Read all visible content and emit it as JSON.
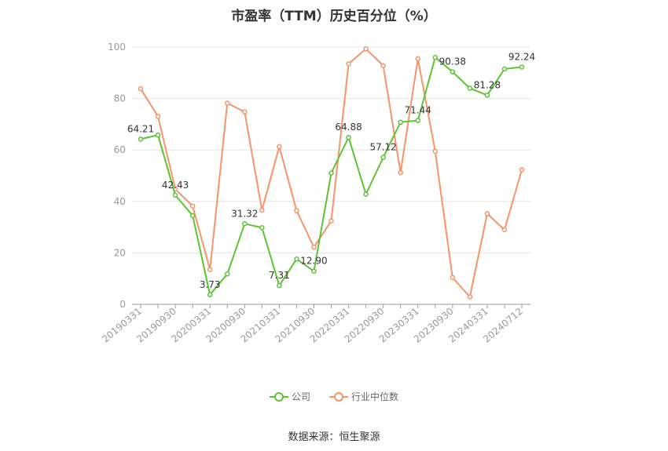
{
  "title": "市盈率（TTM）历史百分位（%）",
  "source": "数据来源：恒生聚源",
  "chart_data": {
    "type": "line",
    "title": "市盈率（TTM）历史百分位（%）",
    "ylim": [
      0,
      100
    ],
    "yticks": [
      0,
      20,
      40,
      60,
      80,
      100
    ],
    "grid": true,
    "legend_position": "bottom",
    "x": [
      "20190331",
      "20190630",
      "20190930",
      "20191231",
      "20200331",
      "20200630",
      "20200930",
      "20201231",
      "20210331",
      "20210630",
      "20210930",
      "20211231",
      "20220331",
      "20220630",
      "20220930",
      "20221231",
      "20230331",
      "20230630",
      "20230930",
      "20231231",
      "20240331",
      "20240630",
      "20240712"
    ],
    "xtick_labels": [
      "20190331",
      "20190930",
      "20200331",
      "20200930",
      "20210331",
      "20210930",
      "20220331",
      "20220930",
      "20230331",
      "20230930",
      "20240331",
      "20240712"
    ],
    "series": [
      {
        "name": "公司",
        "color": "#5cc433",
        "values": [
          64.21,
          65.8,
          42.43,
          34.5,
          3.73,
          11.8,
          31.32,
          29.8,
          7.31,
          17.6,
          12.9,
          51.0,
          64.88,
          42.8,
          57.12,
          70.8,
          71.44,
          96.0,
          90.38,
          84.0,
          81.28,
          91.5,
          92.24
        ],
        "labels": {
          "0": "64.21",
          "2": "42.43",
          "4": "3.73",
          "6": "31.32",
          "8": "7.31",
          "10": "12.90",
          "12": "64.88",
          "14": "57.12",
          "16": "71.44",
          "18": "90.38",
          "20": "81.28",
          "22": "92.24"
        }
      },
      {
        "name": "行业中位数",
        "color": "#f5946a",
        "values": [
          83.8,
          73.0,
          44.8,
          38.2,
          13.5,
          78.2,
          74.8,
          36.6,
          61.3,
          36.4,
          22.2,
          32.4,
          93.5,
          99.3,
          92.8,
          51.2,
          95.5,
          59.5,
          10.4,
          2.9,
          35.2,
          29.0,
          52.3
        ]
      }
    ]
  }
}
